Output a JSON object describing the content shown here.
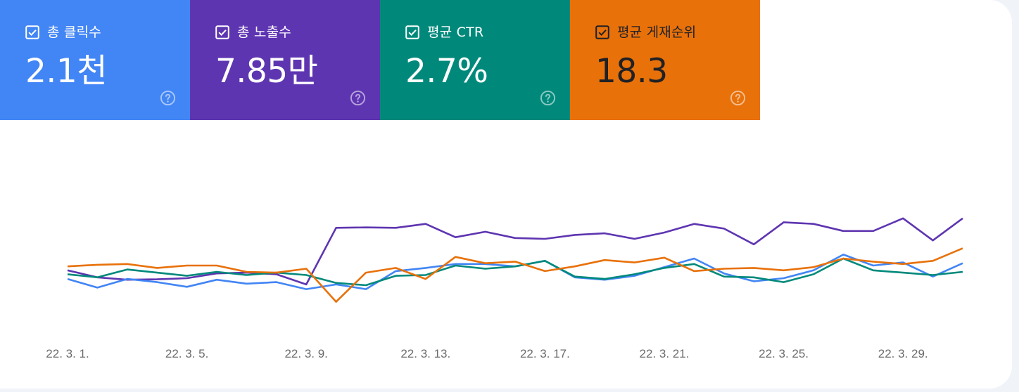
{
  "metrics": [
    {
      "key": "clicks",
      "label": "총 클릭수",
      "value": "2.1천",
      "bg": "#4285f4",
      "text": "#ffffff",
      "help_color": "rgba(255,255,255,0.55)",
      "checked": true,
      "help_icon": "help-circle-icon"
    },
    {
      "key": "impressions",
      "label": "총 노출수",
      "value": "7.85만",
      "bg": "#5e35b1",
      "text": "#ffffff",
      "help_color": "rgba(255,255,255,0.55)",
      "checked": true,
      "help_icon": "help-circle-icon"
    },
    {
      "key": "ctr",
      "label": "평균 CTR",
      "value": "2.7%",
      "bg": "#00897b",
      "text": "#ffffff",
      "help_color": "rgba(255,255,255,0.55)",
      "checked": true,
      "help_icon": "help-circle-icon"
    },
    {
      "key": "position",
      "label": "평균 게재순위",
      "value": "18.3",
      "bg": "#e8710a",
      "text": "#202124",
      "help_color": "rgba(255,255,255,0.55)",
      "checked": true,
      "help_icon": "help-circle-icon"
    }
  ],
  "chart_data": {
    "type": "line",
    "x_ticks": [
      "22. 3. 1.",
      "22. 3. 5.",
      "22. 3. 9.",
      "22. 3. 13.",
      "22. 3. 17.",
      "22. 3. 21.",
      "22. 3. 25.",
      "22. 3. 29."
    ],
    "x_tick_positions": [
      1,
      5,
      9,
      13,
      17,
      21,
      25,
      29
    ],
    "x_range": [
      1,
      31
    ],
    "y_axis_labels_shown": false,
    "grid": false,
    "legend": "metric tiles above chart",
    "series": [
      {
        "name": "총 노출수",
        "color": "#5e35b1",
        "values": [
          0.77,
          0.68,
          0.65,
          0.655,
          0.67,
          0.73,
          0.74,
          0.72,
          0.59,
          1.31,
          1.315,
          1.31,
          1.36,
          1.19,
          1.26,
          1.18,
          1.17,
          1.22,
          1.24,
          1.17,
          1.25,
          1.36,
          1.3,
          1.1,
          1.38,
          1.36,
          1.27,
          1.27,
          1.43,
          1.15,
          1.43
        ]
      },
      {
        "name": "총 클릭수",
        "color": "#4285f4",
        "values": [
          0.66,
          0.55,
          0.66,
          0.62,
          0.56,
          0.65,
          0.6,
          0.62,
          0.53,
          0.59,
          0.53,
          0.76,
          0.8,
          0.85,
          0.85,
          0.82,
          0.89,
          0.68,
          0.65,
          0.7,
          0.81,
          0.92,
          0.73,
          0.63,
          0.67,
          0.77,
          0.97,
          0.83,
          0.87,
          0.69,
          0.86
        ]
      },
      {
        "name": "평균 CTR",
        "color": "#00897b",
        "values": [
          0.72,
          0.68,
          0.78,
          0.74,
          0.7,
          0.75,
          0.71,
          0.74,
          0.71,
          0.61,
          0.58,
          0.7,
          0.71,
          0.83,
          0.79,
          0.82,
          0.89,
          0.69,
          0.66,
          0.72,
          0.8,
          0.85,
          0.69,
          0.68,
          0.62,
          0.72,
          0.92,
          0.77,
          0.74,
          0.71,
          0.75
        ]
      },
      {
        "name": "평균 게재순위",
        "color": "#e8710a",
        "values": [
          0.82,
          0.84,
          0.85,
          0.8,
          0.83,
          0.83,
          0.75,
          0.74,
          0.79,
          0.37,
          0.74,
          0.8,
          0.66,
          0.94,
          0.86,
          0.88,
          0.76,
          0.82,
          0.9,
          0.87,
          0.93,
          0.76,
          0.79,
          0.8,
          0.77,
          0.81,
          0.92,
          0.88,
          0.85,
          0.89,
          1.05
        ]
      }
    ]
  }
}
